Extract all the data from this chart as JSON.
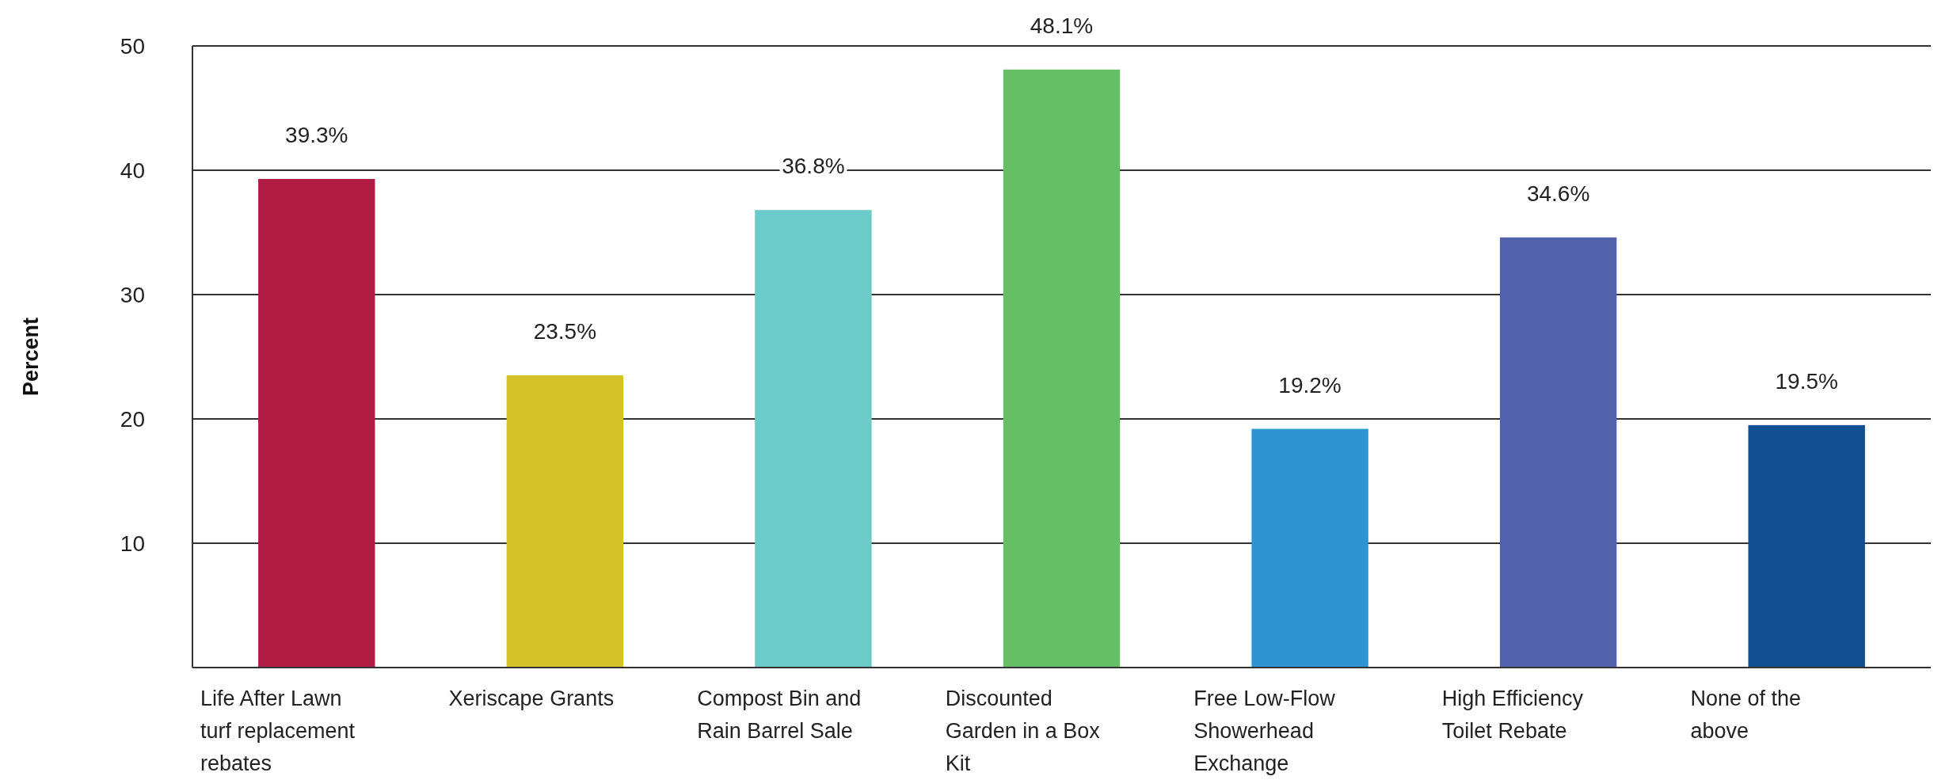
{
  "chart_data": {
    "type": "bar",
    "ylabel": "Percent",
    "categories": [
      "Life After Lawn turf replacement rebates",
      "Xeriscape Grants",
      "Compost Bin and Rain Barrel Sale",
      "Discounted Garden in a Box Kit",
      "Free Low-Flow Showerhead Exchange",
      "High Efficiency Toilet Rebate",
      "None of the above"
    ],
    "values": [
      39.3,
      23.5,
      36.8,
      48.1,
      19.2,
      34.6,
      19.5
    ],
    "colors": [
      "#b01c44",
      "#d4c228",
      "#6ccbc8",
      "#66bf66",
      "#2e94d2",
      "#5462ad",
      "#114f91"
    ],
    "value_labels": [
      "39.3%",
      "23.5%",
      "36.8%",
      "48.1%",
      "19.2%",
      "34.6%",
      "19.5%"
    ],
    "ylim": [
      0,
      50
    ],
    "yticks": [
      10,
      20,
      30,
      40,
      50
    ],
    "grid": "y"
  }
}
